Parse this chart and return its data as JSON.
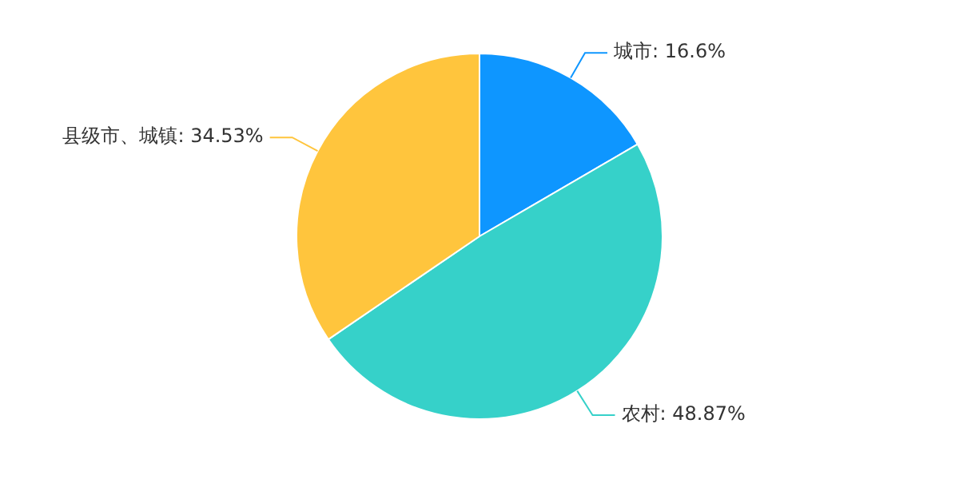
{
  "chart_data": {
    "type": "pie",
    "categories": [
      "城市",
      "农村",
      "县级市、城镇"
    ],
    "values": [
      16.6,
      48.87,
      34.53
    ],
    "colors": [
      "#0e96ff",
      "#36d1c9",
      "#ffc53d"
    ],
    "value_labels": [
      "16.6%",
      "48.87%",
      "34.53%"
    ],
    "legend": false
  }
}
